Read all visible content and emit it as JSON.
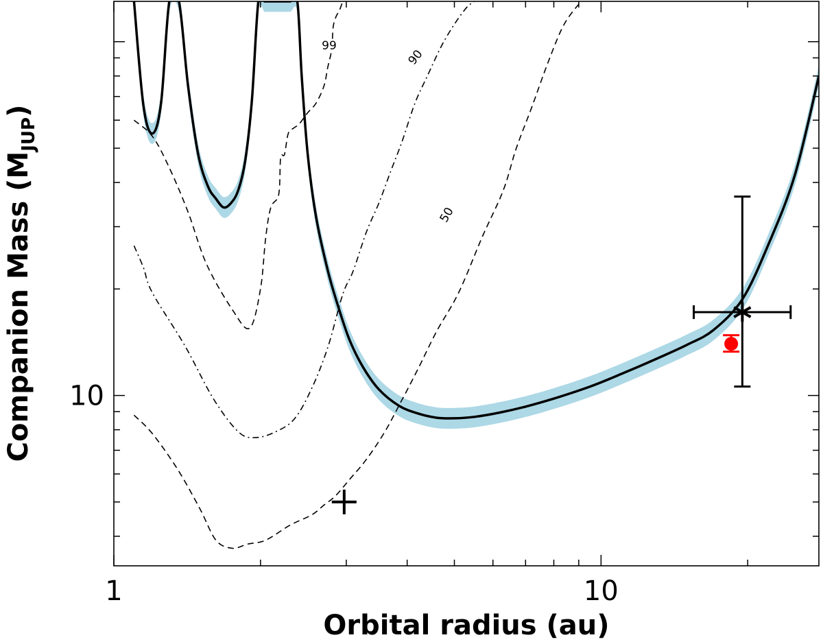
{
  "chart_data": {
    "type": "line",
    "title": "",
    "xlabel": "Orbital radius (au)",
    "ylabel": "Companion Mass (M",
    "ylabel_sub": "JUP",
    "ylabel_close": ")",
    "x_scale": "log",
    "y_scale": "log",
    "xlim": [
      1,
      28
    ],
    "ylim": [
      3.3,
      130
    ],
    "x_tick_labels": [
      {
        "value": 1,
        "label": "1"
      },
      {
        "value": 10,
        "label": "10"
      }
    ],
    "y_tick_labels": [
      {
        "value": 10,
        "label": "10"
      }
    ],
    "grid": false,
    "legend": "none",
    "colors": {
      "curve": "#000000",
      "band": "#add8e6",
      "red_point": "#ff0000",
      "contours": "#000000"
    },
    "curve": {
      "name": "",
      "x": [
        1.1,
        1.15,
        1.2,
        1.25,
        1.3,
        1.36,
        1.42,
        1.49,
        1.56,
        1.62,
        1.68,
        1.74,
        1.8,
        1.86,
        1.92,
        1.98,
        2.04,
        2.1,
        2.2,
        2.3,
        2.38,
        2.43,
        2.5,
        2.6,
        2.75,
        2.9,
        3.05,
        3.25,
        3.5,
        3.85,
        4.2,
        4.6,
        5.0,
        5.5,
        6.2,
        7.0,
        8.0,
        9.5,
        11.0,
        13.0,
        15.0,
        17.0,
        19.5,
        22.0,
        25.0,
        28.0
      ],
      "y": [
        130.0,
        66.0,
        55.0,
        67.0,
        130.0,
        130.0,
        75.0,
        48.0,
        39.0,
        36.0,
        34.0,
        35.0,
        38.0,
        46.0,
        68.0,
        130.0,
        130.0,
        130.0,
        130.0,
        130.0,
        130.0,
        80.0,
        48.0,
        32.0,
        22.5,
        17.5,
        14.3,
        12.0,
        10.4,
        9.35,
        8.9,
        8.65,
        8.62,
        8.7,
        8.95,
        9.3,
        9.8,
        10.6,
        11.5,
        12.7,
        13.9,
        15.3,
        18.7,
        26.5,
        42.0,
        80.0
      ]
    },
    "band_relative_width": 0.07,
    "points": [
      {
        "name": "",
        "marker": "cross",
        "x": 2.97,
        "y": 5.0
      },
      {
        "name": "",
        "marker": "star",
        "x": 19.5,
        "y": 17.2,
        "x_err": [
          15.5,
          24.5
        ],
        "y_err": [
          10.6,
          36.5
        ]
      },
      {
        "name": "",
        "marker": "circle",
        "x": 18.5,
        "y": 14.0,
        "y_err": [
          13.3,
          14.8
        ]
      }
    ],
    "contours": [
      {
        "label": "99",
        "style": "dashed",
        "x": [
          1.1,
          1.2,
          1.3,
          1.42,
          1.55,
          1.75,
          1.9,
          2.0,
          2.05,
          2.1,
          2.18,
          2.2,
          2.24,
          2.28,
          2.34,
          2.4,
          2.5,
          2.6,
          2.7,
          2.75,
          2.8,
          2.82,
          2.86,
          2.9,
          2.95
        ],
        "y": [
          60.0,
          54.0,
          44.0,
          33.0,
          23.5,
          17.5,
          15.5,
          20.0,
          28.0,
          34.0,
          37.0,
          47.0,
          48.0,
          55.0,
          57.0,
          58.5,
          63.0,
          67.0,
          75.0,
          85.0,
          95.0,
          110.0,
          118.0,
          122.0,
          130.0
        ]
      },
      {
        "label": "90",
        "style": "dashdot",
        "x": [
          1.1,
          1.15,
          1.2,
          1.4,
          1.6,
          1.8,
          1.95,
          2.15,
          2.35,
          2.55,
          2.75,
          2.95,
          3.1,
          3.3,
          3.5,
          3.7,
          3.9,
          4.15,
          4.4,
          4.7,
          5.0,
          5.3,
          5.5
        ],
        "y": [
          26.5,
          23.0,
          19.5,
          13.8,
          9.8,
          7.9,
          7.6,
          7.9,
          8.6,
          10.5,
          13.7,
          19.3,
          22.5,
          29.0,
          35.0,
          43.0,
          52.0,
          67.0,
          80.0,
          97.0,
          112.0,
          125.0,
          130.0
        ]
      },
      {
        "label": "50",
        "style": "dashed",
        "x": [
          1.1,
          1.2,
          1.35,
          1.5,
          1.62,
          1.75,
          1.88,
          2.05,
          2.3,
          2.55,
          2.7,
          2.85,
          3.05,
          3.3,
          3.6,
          3.9,
          4.2,
          4.6,
          5.1,
          5.7,
          6.3,
          6.7,
          7.2,
          7.8,
          8.4,
          9.1
        ],
        "y": [
          8.8,
          7.8,
          6.2,
          4.8,
          3.9,
          3.7,
          3.8,
          3.9,
          4.3,
          4.6,
          4.9,
          5.2,
          5.8,
          6.6,
          7.9,
          9.7,
          11.8,
          15.2,
          19.5,
          28.0,
          38.0,
          50.0,
          65.0,
          88.0,
          112.0,
          130.0
        ]
      }
    ]
  }
}
